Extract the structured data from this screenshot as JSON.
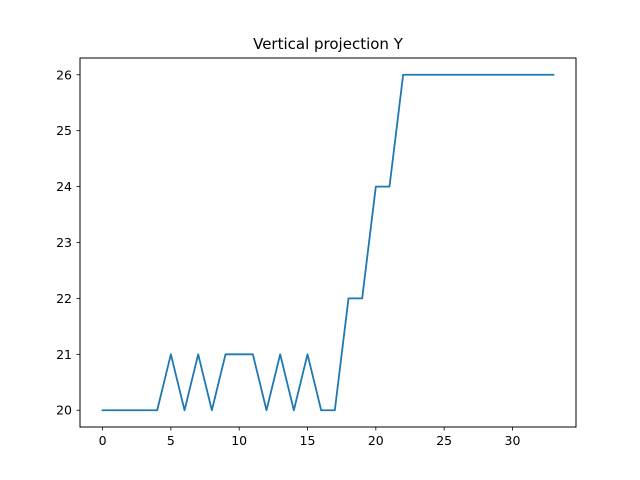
{
  "chart_data": {
    "type": "line",
    "title": "Vertical projection Y",
    "xlabel": "",
    "ylabel": "",
    "xlim": [
      -1.65,
      34.65
    ],
    "ylim": [
      19.7,
      26.3
    ],
    "xticks": [
      0,
      5,
      10,
      15,
      20,
      25,
      30
    ],
    "yticks": [
      20,
      21,
      22,
      23,
      24,
      25,
      26
    ],
    "grid": false,
    "legend": "none",
    "series": [
      {
        "color": "#1f77b4",
        "x": [
          0,
          1,
          2,
          3,
          4,
          5,
          6,
          7,
          8,
          9,
          10,
          11,
          12,
          13,
          14,
          15,
          16,
          17,
          18,
          19,
          20,
          21,
          22,
          23,
          24,
          25,
          26,
          27,
          28,
          29,
          30,
          31,
          32,
          33
        ],
        "y": [
          20,
          20,
          20,
          20,
          20,
          21,
          20,
          21,
          20,
          21,
          21,
          21,
          20,
          21,
          20,
          21,
          20,
          20,
          22,
          22,
          24,
          24,
          26,
          26,
          26,
          26,
          26,
          26,
          26,
          26,
          26,
          26,
          26,
          26
        ]
      }
    ]
  }
}
